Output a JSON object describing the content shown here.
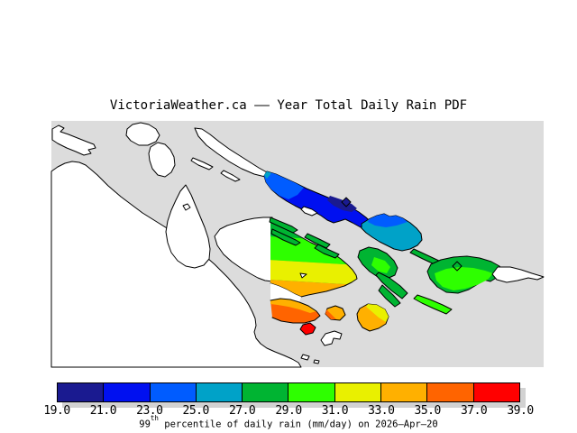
{
  "title": "VictoriaWeather.ca –– Year Total Daily Rain PDF",
  "map": {
    "water_color": "#dcdcdc",
    "land_color": "#ffffff",
    "outline_color": "#000000",
    "shadow_color": "#d2d2d2"
  },
  "colorbar": {
    "ticks": [
      "19.0",
      "21.0",
      "23.0",
      "25.0",
      "27.0",
      "29.0",
      "31.0",
      "33.0",
      "35.0",
      "37.0",
      "39.0"
    ],
    "colors": [
      "#1a1a90",
      "#0010f0",
      "#005cff",
      "#00a2c8",
      "#00b432",
      "#2eff00",
      "#e9f000",
      "#ffb000",
      "#ff6400",
      "#ff0000"
    ],
    "caption_prefix": "99",
    "caption_superscript": "th",
    "caption_suffix": " percentile of daily rain (mm/day) on 2026–Apr–20"
  },
  "chart_data": {
    "type": "heatmap",
    "title": "VictoriaWeather.ca –– Year Total Daily Rain PDF",
    "legend_label": "99th percentile of daily rain (mm/day) on 2026–Apr–20",
    "scale_ticks": [
      19.0,
      21.0,
      23.0,
      25.0,
      27.0,
      29.0,
      31.0,
      33.0,
      35.0,
      37.0,
      39.0
    ],
    "scale_units": "mm/day",
    "palette": [
      "#1a1a90",
      "#0010f0",
      "#005cff",
      "#00a2c8",
      "#00b432",
      "#2eff00",
      "#e9f000",
      "#ffb000",
      "#ff6400",
      "#ff0000"
    ],
    "legend_position": "bottom",
    "regions": [
      {
        "location": "long northwest colored island chain",
        "value_mm_day": "19-25, blue shades with darkest navy patch at its center-east"
      },
      {
        "location": "island just southeast of the blue chain",
        "value_mm_day": "23-27, blue fading to teal"
      },
      {
        "location": "small central sliver islands",
        "value_mm_day": "27-29, green"
      },
      {
        "location": "mid-cluster islands (center-right)",
        "value_mm_day": "27-31, green and bright green"
      },
      {
        "location": "large eastern island with white east tail",
        "value_mm_day": "27-31, green rim with bright green center"
      },
      {
        "location": "west-center peninsula with straight vertical data boundary",
        "value_mm_day": "27-35, north-to-south gradient green / bright green / yellow / orange"
      },
      {
        "location": "southern lobe of that peninsula",
        "value_mm_day": "33-37, orange to deep orange"
      },
      {
        "location": "small southern islets",
        "value_mm_day": "33-39, orange, yellow-orange and red"
      },
      {
        "location": "all other land (west, uncolored)",
        "value_mm_day": "no data (white)"
      }
    ]
  }
}
